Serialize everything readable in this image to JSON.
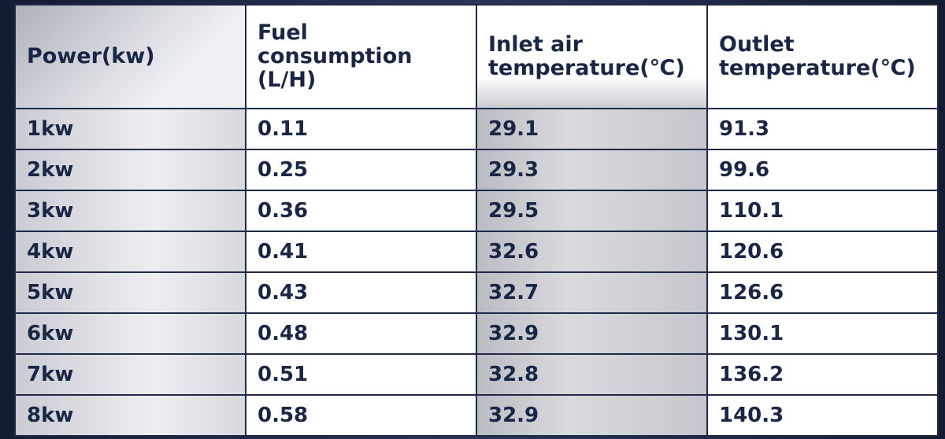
{
  "table": {
    "header": [
      "Power(kw)",
      "Fuel consumption (L/H)",
      "Inlet air temperature(℃)",
      "Outlet temperature(℃)"
    ],
    "rows": [
      [
        "1kw",
        "0.11",
        "29.1",
        "91.3"
      ],
      [
        "2kw",
        "0.25",
        "29.3",
        "99.6"
      ],
      [
        "3kw",
        "0.36",
        "29.5",
        "110.1"
      ],
      [
        "4kw",
        "0.41",
        "32.6",
        "120.6"
      ],
      [
        "5kw",
        "0.43",
        "32.7",
        "126.6"
      ],
      [
        "6kw",
        "0.48",
        "32.9",
        "130.1"
      ],
      [
        "7kw",
        "0.51",
        "32.8",
        "136.2"
      ],
      [
        "8kw",
        "0.58",
        "32.9",
        "140.3"
      ]
    ]
  }
}
